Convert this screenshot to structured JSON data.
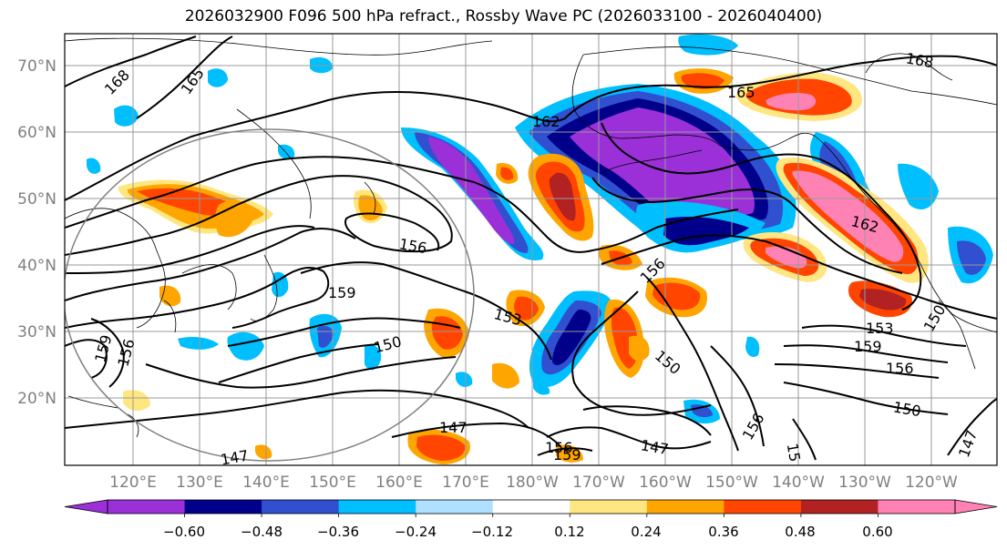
{
  "title": "2026032900 F096 500 hPa refract., Rossby Wave PC (2026033100 - 2026040400)",
  "lat_labels": [
    "70°N",
    "60°N",
    "50°N",
    "40°N",
    "30°N",
    "20°N"
  ],
  "lon_labels": [
    "120°E",
    "130°E",
    "140°E",
    "150°E",
    "160°E",
    "170°E",
    "180°W",
    "170°W",
    "160°W",
    "150°W",
    "140°W",
    "130°W",
    "120°W"
  ],
  "contour_labels": [
    "168",
    "165",
    "165",
    "162",
    "162",
    "168",
    "156",
    "156",
    "159",
    "153",
    "150",
    "159",
    "156",
    "153",
    "159",
    "156",
    "150",
    "150",
    "147",
    "147",
    "147",
    "156",
    "159",
    "156",
    "150",
    "15",
    "147"
  ],
  "colorbar": {
    "ticks": [
      "−0.60",
      "−0.48",
      "−0.36",
      "−0.24",
      "−0.12",
      "0.12",
      "0.24",
      "0.36",
      "0.48",
      "0.60"
    ],
    "colors": [
      "#9b30d9",
      "#00008b",
      "#3050d0",
      "#00bfff",
      "#b0e0ff",
      "#ffffff",
      "#ffe680",
      "#ffa500",
      "#ff4500",
      "#b22222",
      "#ff82b4"
    ]
  }
}
